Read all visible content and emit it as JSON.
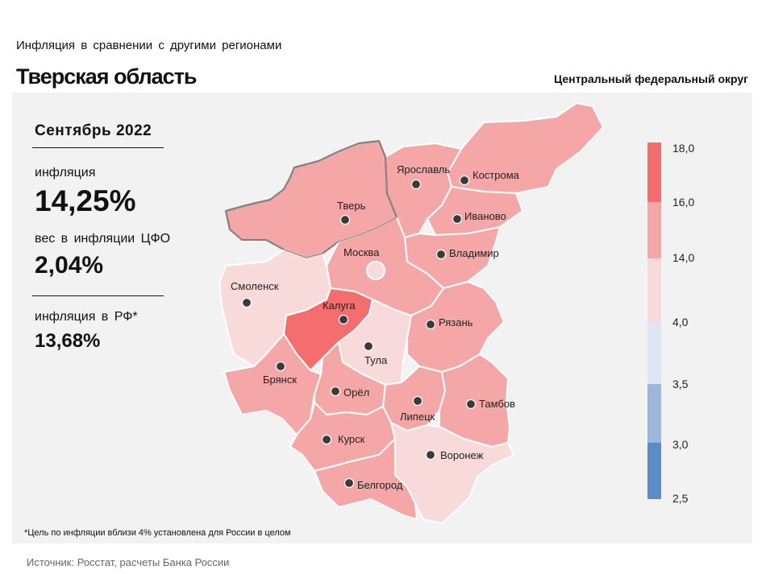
{
  "header": {
    "subtitle": "Инфляция в сравнении с другими регионами",
    "title": "Тверская область",
    "district": "Центральный федеральный округ"
  },
  "stats": {
    "period": "Сентябрь 2022",
    "inflation_label": "инфляция",
    "inflation_value": "14,25%",
    "weight_label": "вес в инфляции ЦФО",
    "weight_value": "2,04%",
    "rf_label": "инфляция в РФ*",
    "rf_value": "13,68%"
  },
  "regions": {
    "yaroslavl": "Ярославль",
    "kostroma": "Кострома",
    "tver": "Тверь",
    "ivanovo": "Иваново",
    "moskva": "Москва",
    "vladimir": "Владимир",
    "smolensk": "Смоленск",
    "kaluga": "Калуга",
    "ryazan": "Рязань",
    "tula": "Тула",
    "bryansk": "Брянск",
    "orel": "Орёл",
    "lipetsk": "Липецк",
    "tambov": "Тамбов",
    "kursk": "Курск",
    "voronezh": "Воронеж",
    "belgorod": "Белгород"
  },
  "legend": {
    "ticks": [
      "18,0",
      "16,0",
      "14,0",
      "4,0",
      "3,5",
      "3,0",
      "2,5"
    ],
    "colors": {
      "above_16": "#f46d6f",
      "14_16": "#f5a7a8",
      "4_14": "#f8dadb",
      "3_5_4": "#dce6f4",
      "3_3_5": "#9bb7dc",
      "below_3": "#5b8cc6"
    }
  },
  "footnote": "*Цель по инфляции вблизи 4% установлена для России в целом",
  "source": "Источник: Росстат, расчеты Банка России"
}
